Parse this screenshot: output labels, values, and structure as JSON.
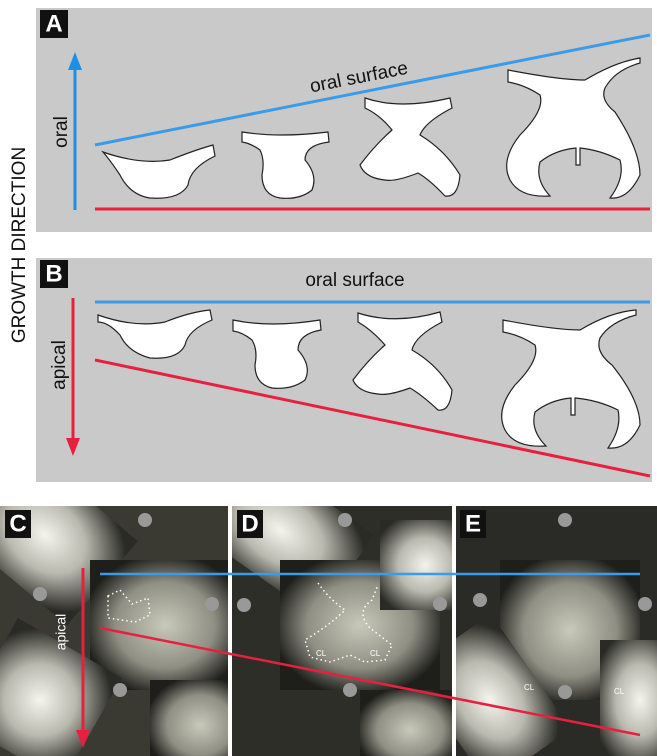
{
  "side_label": "GROWTH DIRECTION",
  "panels": [
    {
      "letter": "A",
      "surface_label": "oral surface",
      "direction_label": "oral"
    },
    {
      "letter": "B",
      "surface_label": "oral surface",
      "direction_label": "apical"
    }
  ],
  "photos": [
    {
      "letter": "C",
      "direction_label": "apical"
    },
    {
      "letter": "D",
      "labels": [
        "CL",
        "CL"
      ]
    },
    {
      "letter": "E",
      "labels": [
        "CL",
        "CL"
      ]
    }
  ]
}
